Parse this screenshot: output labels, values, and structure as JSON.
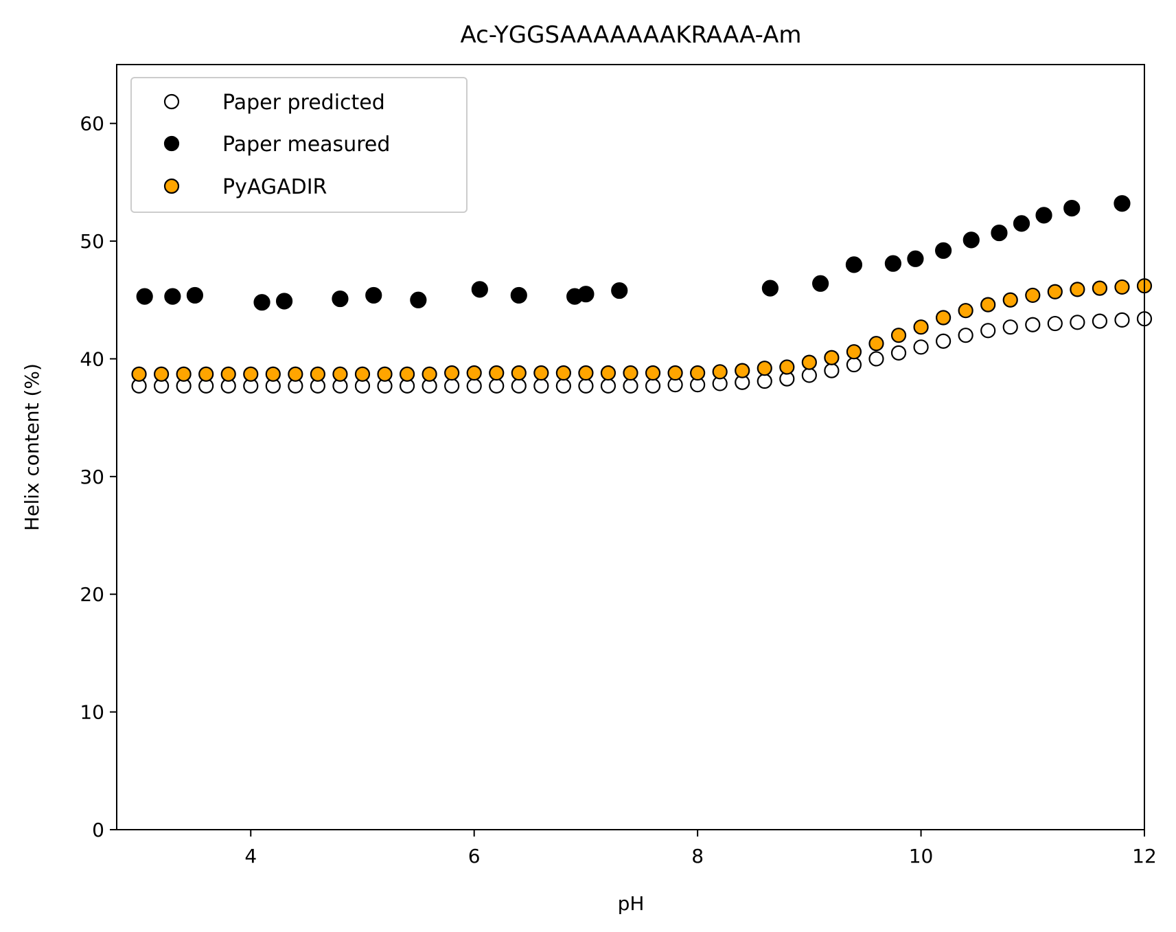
{
  "chart_data": {
    "type": "scatter",
    "title": "Ac-YGGSAAAAAAAKRAAA-Am",
    "xlabel": "pH",
    "ylabel": "Helix content (%)",
    "xlim": [
      2.8,
      12.0
    ],
    "ylim": [
      0,
      65
    ],
    "xticks": [
      "4",
      "6",
      "8",
      "10",
      "12"
    ],
    "yticks": [
      "0",
      "10",
      "20",
      "30",
      "40",
      "50",
      "60"
    ],
    "grid": false,
    "legend_position": "upper-left",
    "series": [
      {
        "name": "Paper predicted",
        "marker": "open-circle",
        "fill": "#ffffff",
        "edge": "#000000",
        "points": [
          [
            3.0,
            37.7
          ],
          [
            3.2,
            37.7
          ],
          [
            3.4,
            37.7
          ],
          [
            3.6,
            37.7
          ],
          [
            3.8,
            37.7
          ],
          [
            4.0,
            37.7
          ],
          [
            4.2,
            37.7
          ],
          [
            4.4,
            37.7
          ],
          [
            4.6,
            37.7
          ],
          [
            4.8,
            37.7
          ],
          [
            5.0,
            37.7
          ],
          [
            5.2,
            37.7
          ],
          [
            5.4,
            37.7
          ],
          [
            5.6,
            37.7
          ],
          [
            5.8,
            37.7
          ],
          [
            6.0,
            37.7
          ],
          [
            6.2,
            37.7
          ],
          [
            6.4,
            37.7
          ],
          [
            6.6,
            37.7
          ],
          [
            6.8,
            37.7
          ],
          [
            7.0,
            37.7
          ],
          [
            7.2,
            37.7
          ],
          [
            7.4,
            37.7
          ],
          [
            7.6,
            37.7
          ],
          [
            7.8,
            37.8
          ],
          [
            8.0,
            37.8
          ],
          [
            8.2,
            37.9
          ],
          [
            8.4,
            38.0
          ],
          [
            8.6,
            38.1
          ],
          [
            8.8,
            38.3
          ],
          [
            9.0,
            38.6
          ],
          [
            9.2,
            39.0
          ],
          [
            9.4,
            39.5
          ],
          [
            9.6,
            40.0
          ],
          [
            9.8,
            40.5
          ],
          [
            10.0,
            41.0
          ],
          [
            10.2,
            41.5
          ],
          [
            10.4,
            42.0
          ],
          [
            10.6,
            42.4
          ],
          [
            10.8,
            42.7
          ],
          [
            11.0,
            42.9
          ],
          [
            11.2,
            43.0
          ],
          [
            11.4,
            43.1
          ],
          [
            11.6,
            43.2
          ],
          [
            11.8,
            43.3
          ],
          [
            12.0,
            43.4
          ]
        ]
      },
      {
        "name": "Paper measured",
        "marker": "filled-circle",
        "fill": "#000000",
        "edge": "#000000",
        "points": [
          [
            3.05,
            45.3
          ],
          [
            3.3,
            45.3
          ],
          [
            3.5,
            45.4
          ],
          [
            4.1,
            44.8
          ],
          [
            4.3,
            44.9
          ],
          [
            4.8,
            45.1
          ],
          [
            5.1,
            45.4
          ],
          [
            5.5,
            45.0
          ],
          [
            6.05,
            45.9
          ],
          [
            6.4,
            45.4
          ],
          [
            6.9,
            45.3
          ],
          [
            7.0,
            45.5
          ],
          [
            7.3,
            45.8
          ],
          [
            8.65,
            46.0
          ],
          [
            9.1,
            46.4
          ],
          [
            9.4,
            48.0
          ],
          [
            9.75,
            48.1
          ],
          [
            9.95,
            48.5
          ],
          [
            10.2,
            49.2
          ],
          [
            10.45,
            50.1
          ],
          [
            10.7,
            50.7
          ],
          [
            10.9,
            51.5
          ],
          [
            11.1,
            52.2
          ],
          [
            11.35,
            52.8
          ],
          [
            11.8,
            53.2
          ]
        ]
      },
      {
        "name": "PyAGADIR",
        "marker": "filled-circle",
        "fill": "#ffa500",
        "edge": "#000000",
        "points": [
          [
            3.0,
            38.7
          ],
          [
            3.2,
            38.7
          ],
          [
            3.4,
            38.7
          ],
          [
            3.6,
            38.7
          ],
          [
            3.8,
            38.7
          ],
          [
            4.0,
            38.7
          ],
          [
            4.2,
            38.7
          ],
          [
            4.4,
            38.7
          ],
          [
            4.6,
            38.7
          ],
          [
            4.8,
            38.7
          ],
          [
            5.0,
            38.7
          ],
          [
            5.2,
            38.7
          ],
          [
            5.4,
            38.7
          ],
          [
            5.6,
            38.7
          ],
          [
            5.8,
            38.8
          ],
          [
            6.0,
            38.8
          ],
          [
            6.2,
            38.8
          ],
          [
            6.4,
            38.8
          ],
          [
            6.6,
            38.8
          ],
          [
            6.8,
            38.8
          ],
          [
            7.0,
            38.8
          ],
          [
            7.2,
            38.8
          ],
          [
            7.4,
            38.8
          ],
          [
            7.6,
            38.8
          ],
          [
            7.8,
            38.8
          ],
          [
            8.0,
            38.8
          ],
          [
            8.2,
            38.9
          ],
          [
            8.4,
            39.0
          ],
          [
            8.6,
            39.2
          ],
          [
            8.8,
            39.3
          ],
          [
            9.0,
            39.7
          ],
          [
            9.2,
            40.1
          ],
          [
            9.4,
            40.6
          ],
          [
            9.6,
            41.3
          ],
          [
            9.8,
            42.0
          ],
          [
            10.0,
            42.7
          ],
          [
            10.2,
            43.5
          ],
          [
            10.4,
            44.1
          ],
          [
            10.6,
            44.6
          ],
          [
            10.8,
            45.0
          ],
          [
            11.0,
            45.4
          ],
          [
            11.2,
            45.7
          ],
          [
            11.4,
            45.9
          ],
          [
            11.6,
            46.0
          ],
          [
            11.8,
            46.1
          ],
          [
            12.0,
            46.2
          ]
        ]
      }
    ]
  }
}
